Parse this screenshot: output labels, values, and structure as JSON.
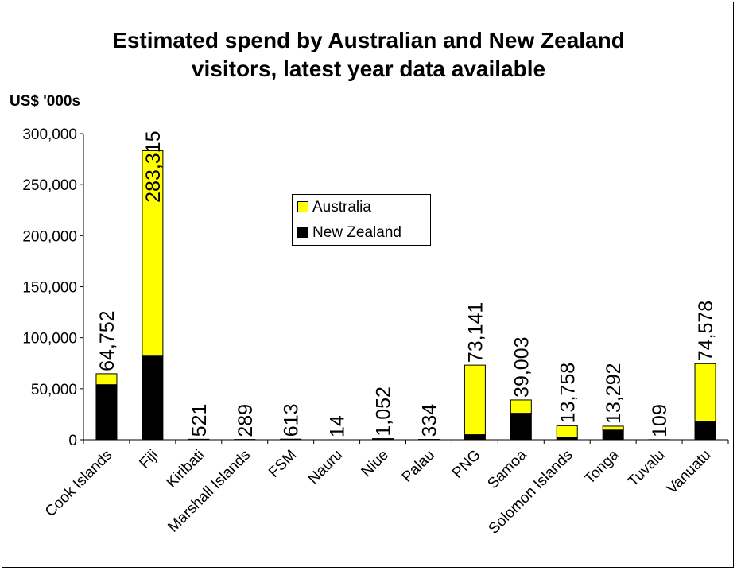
{
  "chart_data": {
    "type": "bar",
    "stacked": true,
    "title": "Estimated spend by Australian and New Zealand visitors, latest year data available",
    "title_lines": [
      "Estimated spend by Australian and New Zealand",
      "visitors, latest year data available"
    ],
    "ylabel": "US$ '000s",
    "xlabel": "",
    "ylim": [
      0,
      300000
    ],
    "yticks": [
      0,
      50000,
      100000,
      150000,
      200000,
      250000,
      300000
    ],
    "ytick_labels": [
      "0",
      "50,000",
      "100,000",
      "150,000",
      "200,000",
      "250,000",
      "300,000"
    ],
    "grid": false,
    "legend_position": "center",
    "categories": [
      "Cook Islands",
      "Fiji",
      "Kiribati",
      "Marshall Islands",
      "FSM",
      "Nauru",
      "Niue",
      "Palau",
      "PNG",
      "Samoa",
      "Solomon Islands",
      "Tonga",
      "Tuvalu",
      "Vanuatu"
    ],
    "series": [
      {
        "name": "New Zealand",
        "color": "#000000",
        "values": [
          54000,
          82000,
          200,
          100,
          300,
          5,
          900,
          150,
          5000,
          26000,
          2500,
          9500,
          50,
          17500
        ]
      },
      {
        "name": "Australia",
        "color": "#ffff00",
        "values": [
          10752,
          201315,
          321,
          189,
          313,
          9,
          152,
          184,
          68141,
          13003,
          11258,
          3792,
          59,
          57078
        ]
      }
    ],
    "totals": [
      64752,
      283315,
      521,
      289,
      613,
      14,
      1052,
      334,
      73141,
      39003,
      13758,
      13292,
      109,
      74578
    ],
    "total_labels": [
      "64,752",
      "283,315",
      "521",
      "289",
      "613",
      "14",
      "1,052",
      "334",
      "73,141",
      "39,003",
      "13,758",
      "13,292",
      "109",
      "74,578"
    ]
  }
}
